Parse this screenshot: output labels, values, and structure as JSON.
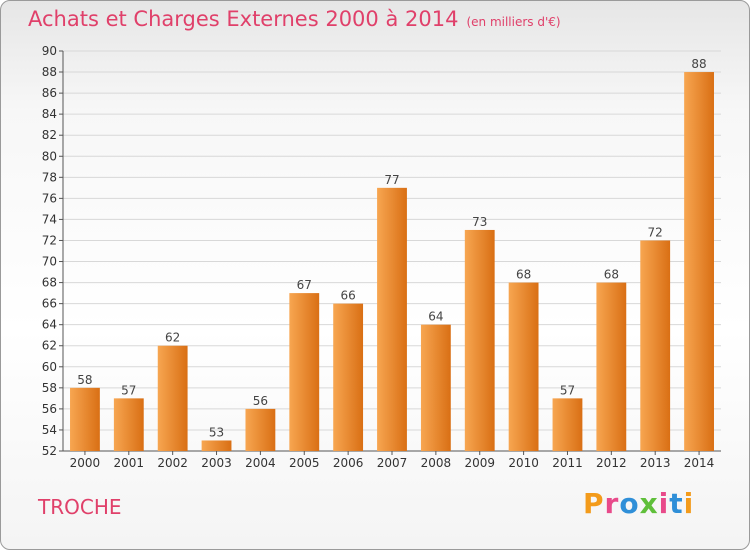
{
  "header": {
    "title": "Achats et Charges Externes 2000 à 2014",
    "unit": "(en milliers d'€)"
  },
  "footer": {
    "commune": "TROCHE",
    "logo_text": "Proxiti",
    "logo_colors": [
      "#f39b1b",
      "#e84a8a",
      "#2f8fd8",
      "#5fbf3a",
      "#e84a8a",
      "#2f8fd8",
      "#f39b1b"
    ]
  },
  "colors": {
    "bar_light": "#f7a651",
    "bar_dark": "#d96f14",
    "grid": "#d8d8d8",
    "title": "#e0406a"
  },
  "chart_data": {
    "type": "bar",
    "categories": [
      "2000",
      "2001",
      "2002",
      "2003",
      "2004",
      "2005",
      "2006",
      "2007",
      "2008",
      "2009",
      "2010",
      "2011",
      "2012",
      "2013",
      "2014"
    ],
    "values": [
      58,
      57,
      62,
      53,
      56,
      67,
      66,
      77,
      64,
      73,
      68,
      57,
      68,
      72,
      88
    ],
    "ylim": [
      52,
      90
    ],
    "ytick_step": 2,
    "grid": true
  }
}
